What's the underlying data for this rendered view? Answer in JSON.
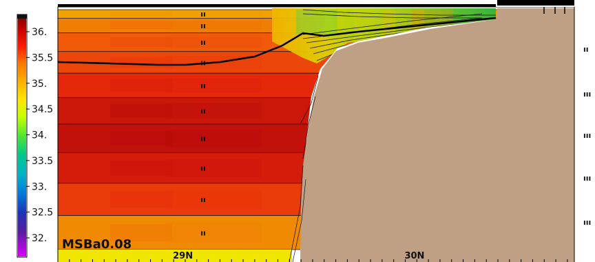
{
  "chart_data": {
    "type": "heatmap",
    "variable": "salinity",
    "experiment_label": "MSBa0.08",
    "colorbar": {
      "ticks": [
        36.0,
        35.5,
        35.0,
        34.5,
        34.0,
        33.5,
        33.0,
        32.5,
        32.0
      ],
      "tick_labels": [
        "36.",
        "35.5",
        "35.",
        "34.5",
        "34.",
        "33.5",
        "33.",
        "32.5",
        "32."
      ],
      "range": [
        31.75,
        36.5
      ]
    },
    "x_axis": {
      "tick_labels": [
        "29N",
        "30N"
      ],
      "tick_values": [
        29,
        30
      ],
      "range": [
        28.46,
        30.69
      ]
    },
    "layers": [
      {
        "value": 35.4,
        "marker": "ıı"
      },
      {
        "value": 35.6,
        "marker": "ıı"
      },
      {
        "value": 35.75,
        "marker": "ıı"
      },
      {
        "value": 35.85,
        "marker": "ıı"
      },
      {
        "value": 36.0,
        "marker": "ıı"
      },
      {
        "value": 36.15,
        "marker": "ıı"
      },
      {
        "value": 36.2,
        "marker": "ıı"
      },
      {
        "value": 36.1,
        "marker": "ıı"
      },
      {
        "value": 35.9,
        "marker": "ıı"
      },
      {
        "value": 35.55,
        "marker": "ıı"
      }
    ],
    "shelf_values": [
      34.2,
      34.6,
      34.9,
      35.2,
      35.5
    ],
    "right_marks": [
      "ıı",
      "ııı",
      "ııı",
      "ııı",
      "ııı"
    ]
  }
}
